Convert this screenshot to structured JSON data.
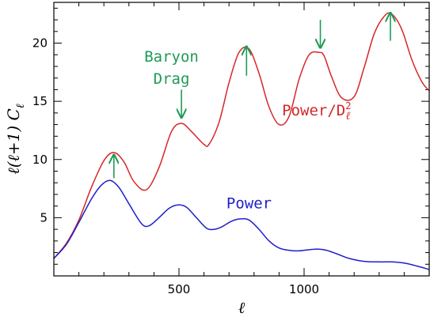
{
  "chart_data": {
    "type": "line",
    "title": "",
    "xlabel": "ℓ",
    "ylabel": "ℓ(ℓ+1) C",
    "ylabel_sub": "ℓ",
    "xlim": [
      0,
      1500
    ],
    "ylim": [
      0,
      23.5
    ],
    "x_ticks": [
      500,
      1000
    ],
    "y_ticks": [
      5,
      10,
      15,
      20
    ],
    "grid": false,
    "legend": "none",
    "colors": {
      "power_damped": "#d62728",
      "power": "#1f1fcc",
      "annotation": "#1f9a57"
    },
    "series": [
      {
        "name": "Power/D",
        "name_sup": "2",
        "name_sub": "ℓ",
        "color": "#d62728",
        "x": [
          0,
          50,
          100,
          150,
          200,
          240,
          280,
          320,
          370,
          420,
          470,
          510,
          550,
          600,
          620,
          660,
          700,
          740,
          780,
          820,
          860,
          900,
          940,
          980,
          1020,
          1060,
          1080,
          1110,
          1150,
          1200,
          1240,
          1280,
          1320,
          1350,
          1390,
          1430,
          1470,
          1500
        ],
        "y": [
          1.5,
          2.8,
          4.8,
          7.6,
          9.9,
          10.6,
          9.8,
          8.1,
          7.4,
          9.3,
          12.4,
          13.1,
          12.4,
          11.3,
          11.3,
          13.2,
          16.6,
          19.2,
          19.5,
          17.4,
          14.5,
          13.0,
          13.7,
          16.9,
          19.0,
          19.2,
          18.9,
          17.1,
          15.3,
          15.4,
          17.9,
          20.8,
          22.3,
          22.5,
          21.2,
          18.6,
          16.7,
          15.9
        ]
      },
      {
        "name": "Power",
        "color": "#1f1fcc",
        "x": [
          0,
          50,
          100,
          150,
          190,
          225,
          260,
          300,
          350,
          380,
          420,
          460,
          495,
          530,
          570,
          610,
          640,
          670,
          710,
          745,
          780,
          820,
          860,
          900,
          940,
          980,
          1020,
          1055,
          1090,
          1130,
          1180,
          1240,
          1300,
          1350,
          1400,
          1450,
          1500
        ],
        "y": [
          1.5,
          2.7,
          4.6,
          6.6,
          7.8,
          8.2,
          7.6,
          6.2,
          4.5,
          4.3,
          5.0,
          5.8,
          6.1,
          5.9,
          5.0,
          4.1,
          4.0,
          4.2,
          4.7,
          4.9,
          4.8,
          4.0,
          3.0,
          2.4,
          2.2,
          2.15,
          2.25,
          2.3,
          2.2,
          1.9,
          1.5,
          1.25,
          1.2,
          1.2,
          1.1,
          0.85,
          0.55
        ]
      }
    ],
    "annotations": [
      {
        "text": "Baryon",
        "x": 470,
        "y": 18.4
      },
      {
        "text": "Drag",
        "x": 470,
        "y": 16.5
      }
    ],
    "arrows": [
      {
        "x": 240,
        "y_tail": 8.4,
        "y_head": 10.4,
        "direction": "up"
      },
      {
        "x": 510,
        "y_tail": 16.0,
        "y_head": 13.6,
        "direction": "down"
      },
      {
        "x": 770,
        "y_tail": 17.2,
        "y_head": 19.7,
        "direction": "up"
      },
      {
        "x": 1065,
        "y_tail": 22.0,
        "y_head": 19.6,
        "direction": "down"
      },
      {
        "x": 1345,
        "y_tail": 20.2,
        "y_head": 22.6,
        "direction": "up"
      }
    ],
    "series_labels": [
      {
        "series": 0,
        "x": 1050,
        "y": 13.8
      },
      {
        "series": 1,
        "x": 780,
        "y": 5.8
      }
    ]
  }
}
